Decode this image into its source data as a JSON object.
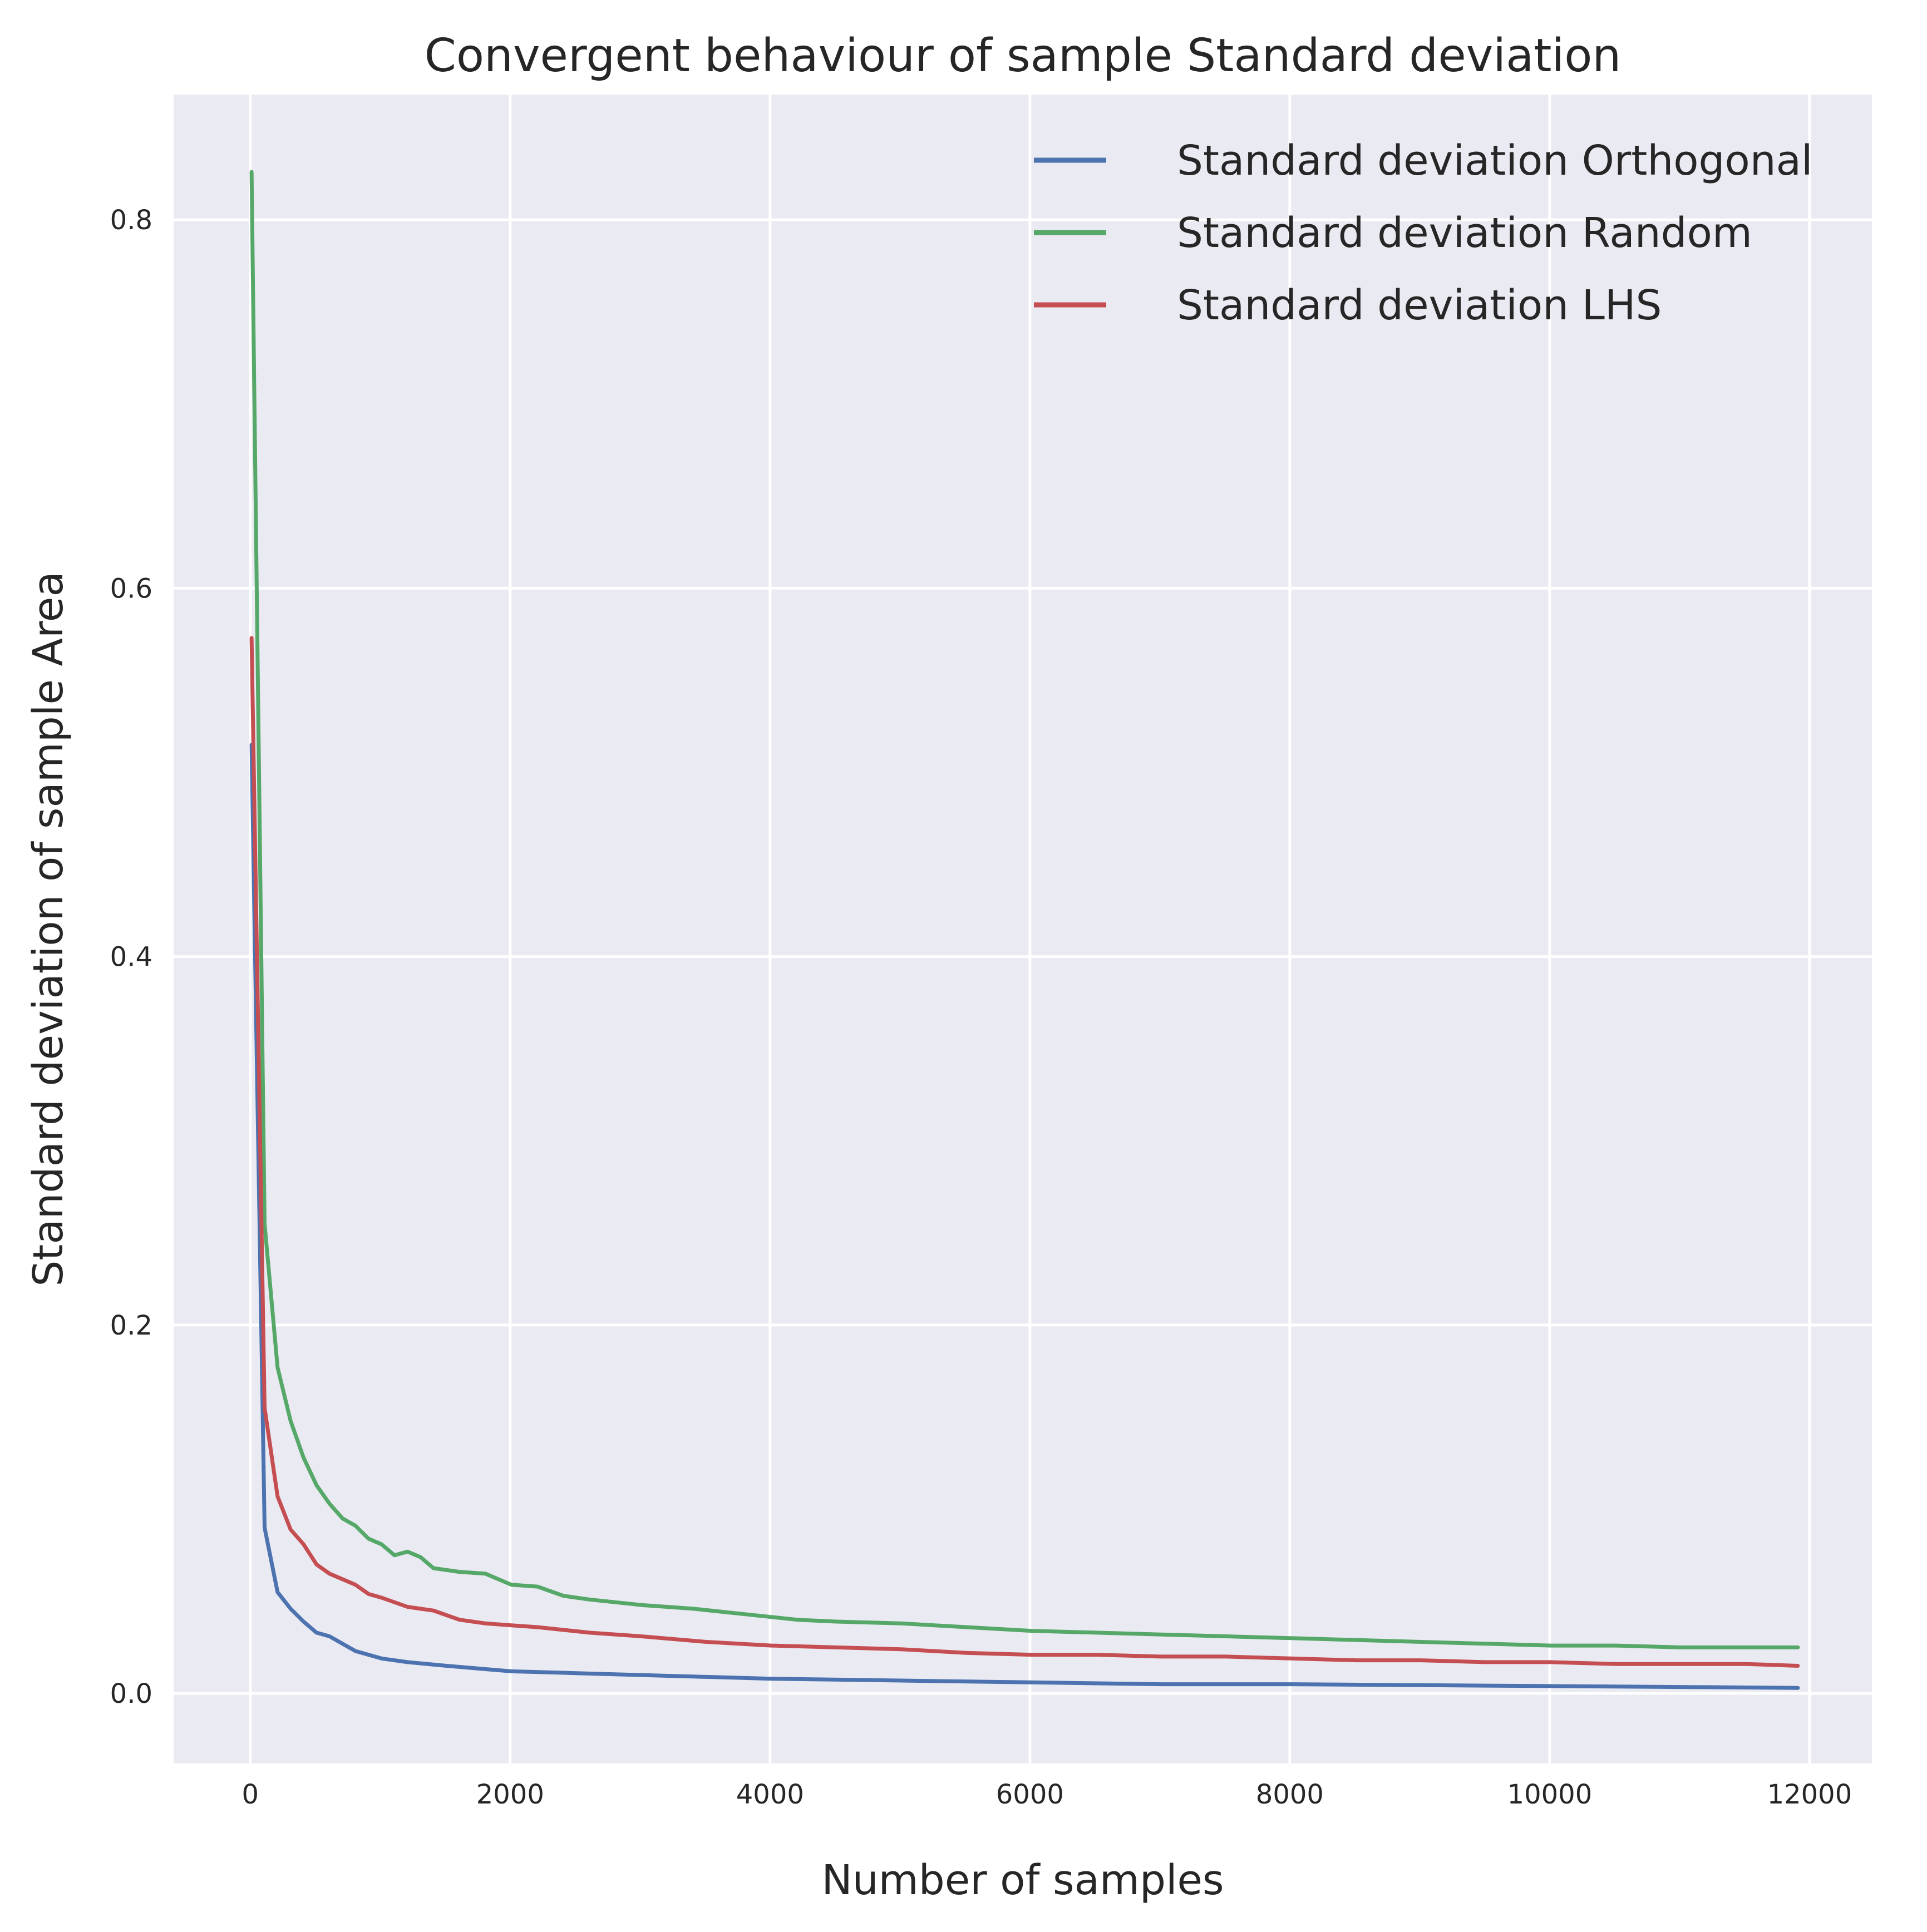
{
  "chart_data": {
    "type": "line",
    "title": "Convergent behaviour of sample Standard deviation",
    "xlabel": "Number of samples",
    "ylabel": "Standard deviation of sample Area",
    "xlim": [
      -590,
      12480
    ],
    "ylim": [
      -0.038,
      0.868
    ],
    "xticks": [
      0,
      2000,
      4000,
      6000,
      8000,
      10000,
      12000
    ],
    "yticks": [
      0.0,
      0.2,
      0.4,
      0.6,
      0.8
    ],
    "grid": true,
    "legend_position": "top-right",
    "background": "#eaeaf2",
    "series": [
      {
        "name": "Standard deviation Orthogonal",
        "color": "#4c72b0",
        "x": [
          10,
          110,
          210,
          310,
          410,
          510,
          610,
          710,
          810,
          1010,
          1210,
          1510,
          2010,
          2510,
          3010,
          4010,
          5010,
          6010,
          7010,
          8010,
          9010,
          10010,
          11010,
          11910
        ],
        "y": [
          0.515,
          0.09,
          0.055,
          0.046,
          0.039,
          0.033,
          0.031,
          0.027,
          0.023,
          0.019,
          0.017,
          0.015,
          0.012,
          0.011,
          0.01,
          0.008,
          0.007,
          0.006,
          0.005,
          0.005,
          0.0045,
          0.004,
          0.0035,
          0.003
        ]
      },
      {
        "name": "Standard deviation Random",
        "color": "#55a868",
        "x": [
          10,
          110,
          210,
          310,
          410,
          510,
          610,
          710,
          810,
          910,
          1010,
          1110,
          1210,
          1310,
          1410,
          1610,
          1810,
          2010,
          2210,
          2410,
          2610,
          3010,
          3410,
          3810,
          4210,
          4510,
          5010,
          5510,
          6010,
          6510,
          7010,
          7510,
          8010,
          8510,
          9010,
          9510,
          10010,
          10510,
          11010,
          11510,
          11910
        ],
        "y": [
          0.826,
          0.255,
          0.177,
          0.148,
          0.128,
          0.113,
          0.103,
          0.095,
          0.091,
          0.084,
          0.081,
          0.075,
          0.077,
          0.074,
          0.068,
          0.066,
          0.065,
          0.059,
          0.058,
          0.053,
          0.051,
          0.048,
          0.046,
          0.043,
          0.04,
          0.039,
          0.038,
          0.036,
          0.034,
          0.033,
          0.032,
          0.031,
          0.03,
          0.029,
          0.028,
          0.027,
          0.026,
          0.026,
          0.025,
          0.025,
          0.025
        ]
      },
      {
        "name": "Standard deviation LHS",
        "color": "#c44e52",
        "x": [
          10,
          110,
          210,
          310,
          410,
          510,
          610,
          710,
          810,
          910,
          1010,
          1210,
          1410,
          1610,
          1810,
          2010,
          2210,
          2610,
          3010,
          3510,
          4010,
          4510,
          5010,
          5510,
          6010,
          6510,
          7010,
          7510,
          8010,
          8510,
          9010,
          9510,
          10010,
          10510,
          11010,
          11510,
          11910
        ],
        "y": [
          0.573,
          0.155,
          0.107,
          0.089,
          0.081,
          0.07,
          0.065,
          0.062,
          0.059,
          0.054,
          0.052,
          0.047,
          0.045,
          0.04,
          0.038,
          0.037,
          0.036,
          0.033,
          0.031,
          0.028,
          0.026,
          0.025,
          0.024,
          0.022,
          0.021,
          0.021,
          0.02,
          0.02,
          0.019,
          0.018,
          0.018,
          0.017,
          0.017,
          0.016,
          0.016,
          0.016,
          0.015
        ]
      }
    ]
  }
}
